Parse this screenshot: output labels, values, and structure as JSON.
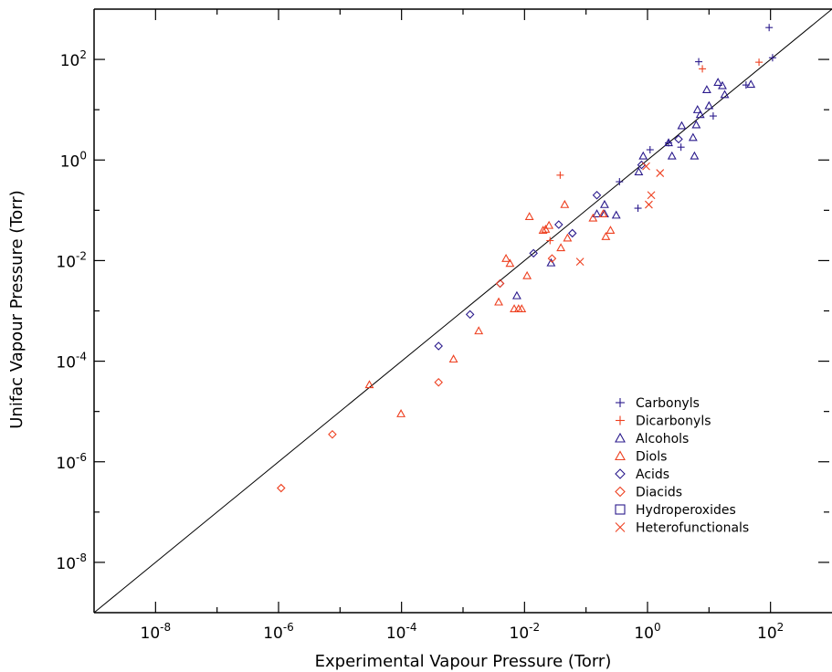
{
  "chart_data": {
    "type": "scatter",
    "xlabel": "Experimental Vapour Pressure (Torr)",
    "ylabel": "Unifac Vapour Pressure (Torr)",
    "xscale": "log",
    "yscale": "log",
    "xlim": [
      1e-09,
      1000
    ],
    "ylim": [
      1e-09,
      1000
    ],
    "xticks": [
      {
        "value": 1e-08,
        "base": "10",
        "exp": "-8"
      },
      {
        "value": 1e-06,
        "base": "10",
        "exp": "-6"
      },
      {
        "value": 0.0001,
        "base": "10",
        "exp": "-4"
      },
      {
        "value": 0.01,
        "base": "10",
        "exp": "-2"
      },
      {
        "value": 1,
        "base": "10",
        "exp": "0"
      },
      {
        "value": 100,
        "base": "10",
        "exp": "2"
      }
    ],
    "yticks": [
      {
        "value": 1e-08,
        "base": "10",
        "exp": "-8"
      },
      {
        "value": 1e-06,
        "base": "10",
        "exp": "-6"
      },
      {
        "value": 0.0001,
        "base": "10",
        "exp": "-4"
      },
      {
        "value": 0.01,
        "base": "10",
        "exp": "-2"
      },
      {
        "value": 1,
        "base": "10",
        "exp": "0"
      },
      {
        "value": 100,
        "base": "10",
        "exp": "2"
      }
    ],
    "grid": false,
    "reference_line": "y = x",
    "legend_position": "lower-right",
    "series": [
      {
        "name": "Carbonyls",
        "marker": "plus",
        "color": "#2a1a8c",
        "points": [
          [
            0.35,
            0.37
          ],
          [
            0.7,
            0.11
          ],
          [
            1.1,
            1.6
          ],
          [
            2.2,
            2.2
          ],
          [
            3.5,
            1.8
          ],
          [
            6.8,
            90
          ],
          [
            11.7,
            7.5
          ],
          [
            40,
            31
          ],
          [
            95,
            430
          ],
          [
            108,
            108
          ]
        ]
      },
      {
        "name": "Dicarbonyls",
        "marker": "plus",
        "color": "#ee4020",
        "points": [
          [
            0.038,
            0.5
          ],
          [
            0.026,
            0.025
          ],
          [
            7.8,
            65
          ],
          [
            65,
            88
          ]
        ]
      },
      {
        "name": "Alcohols",
        "marker": "triangle",
        "color": "#2a1a8c",
        "points": [
          [
            0.2,
            0.085
          ],
          [
            0.2,
            0.13
          ],
          [
            0.31,
            0.08
          ],
          [
            0.72,
            0.58
          ],
          [
            0.85,
            1.2
          ],
          [
            2.2,
            2.2
          ],
          [
            2.5,
            1.2
          ],
          [
            3.6,
            4.8
          ],
          [
            5.5,
            2.8
          ],
          [
            5.8,
            1.2
          ],
          [
            6.2,
            5
          ],
          [
            6.5,
            10
          ],
          [
            7.2,
            8
          ],
          [
            9.2,
            25
          ],
          [
            10,
            12
          ],
          [
            14,
            35
          ],
          [
            16.5,
            30
          ],
          [
            18,
            20
          ],
          [
            48,
            32
          ],
          [
            0.027,
            0.009
          ],
          [
            0.0075,
            0.002
          ],
          [
            0.15,
            0.085
          ]
        ]
      },
      {
        "name": "Diols",
        "marker": "triangle",
        "color": "#ee4020",
        "points": [
          [
            3e-05,
            3.4e-05
          ],
          [
            9.8e-05,
            9e-06
          ],
          [
            0.0007,
            0.00011
          ],
          [
            0.0018,
            0.0004
          ],
          [
            0.0038,
            0.0015
          ],
          [
            0.0068,
            0.0011
          ],
          [
            0.008,
            0.0011
          ],
          [
            0.011,
            0.005
          ],
          [
            0.039,
            0.018
          ],
          [
            0.005,
            0.011
          ],
          [
            0.0058,
            0.0088
          ],
          [
            0.009,
            0.0011
          ],
          [
            0.02,
            0.04
          ],
          [
            0.022,
            0.042
          ],
          [
            0.025,
            0.05
          ],
          [
            0.045,
            0.13
          ],
          [
            0.05,
            0.028
          ],
          [
            0.012,
            0.075
          ],
          [
            0.13,
            0.07
          ],
          [
            0.19,
            0.085
          ],
          [
            0.25,
            0.04
          ],
          [
            0.21,
            0.03
          ]
        ]
      },
      {
        "name": "Acids",
        "marker": "diamond",
        "color": "#2a1a8c",
        "points": [
          [
            0.0004,
            0.0002
          ],
          [
            0.0013,
            0.00085
          ],
          [
            0.004,
            0.0035
          ],
          [
            0.014,
            0.014
          ],
          [
            0.036,
            0.052
          ],
          [
            0.06,
            0.035
          ],
          [
            0.15,
            0.2
          ],
          [
            0.8,
            0.8
          ],
          [
            3.2,
            2.6
          ]
        ]
      },
      {
        "name": "Diacids",
        "marker": "diamond",
        "color": "#ee4020",
        "points": [
          [
            1.1e-06,
            3e-07
          ],
          [
            7.5e-06,
            3.5e-06
          ],
          [
            0.0004,
            3.8e-05
          ],
          [
            0.004,
            0.0035
          ],
          [
            0.028,
            0.011
          ]
        ]
      },
      {
        "name": "Hydroperoxides",
        "marker": "square",
        "color": "#2a1a8c",
        "points": []
      },
      {
        "name": "Heterofunctionals",
        "marker": "cross",
        "color": "#ee4020",
        "points": [
          [
            0.08,
            0.0095
          ],
          [
            0.95,
            0.75
          ],
          [
            1.05,
            0.13
          ],
          [
            1.15,
            0.2
          ],
          [
            1.6,
            0.55
          ]
        ]
      }
    ]
  }
}
